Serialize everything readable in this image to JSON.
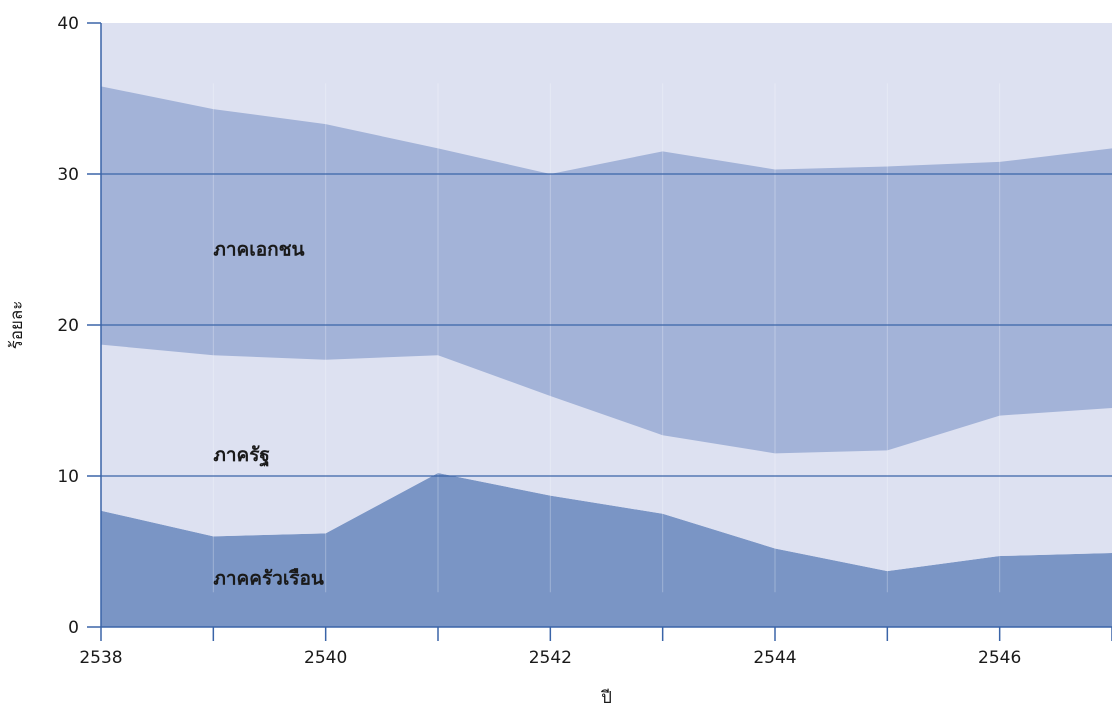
{
  "chart_data": {
    "type": "area",
    "stacked": true,
    "x": [
      2538,
      2539,
      2540,
      2541,
      2542,
      2543,
      2544,
      2545,
      2546,
      2547
    ],
    "xlim": [
      2538,
      2547
    ],
    "ylim": [
      0,
      40
    ],
    "x_ticks": [
      2538,
      2539,
      2540,
      2541,
      2542,
      2543,
      2544,
      2545,
      2546,
      2547
    ],
    "x_tick_labels": [
      "2538",
      "2540",
      "2542",
      "2544",
      "2546"
    ],
    "y_ticks": [
      0,
      10,
      20,
      30,
      40
    ],
    "xlabel": "ปี",
    "ylabel": "ร้อยละ",
    "grid": {
      "horizontal": true,
      "vertical": true
    },
    "legend": "inline labels inside bands",
    "background_color": "#dde1f1",
    "axis_color": "#3a64a8",
    "series": [
      {
        "name": "ภาคครัวเรือน",
        "color": "#7a95c5",
        "values": [
          7.7,
          6.0,
          6.2,
          10.2,
          8.7,
          7.5,
          5.2,
          3.7,
          4.7,
          4.9
        ]
      },
      {
        "name": "ภาครัฐ",
        "color": "#dde1f1",
        "values": [
          11.0,
          12.0,
          11.5,
          7.8,
          6.6,
          5.2,
          6.3,
          8.0,
          9.3,
          9.6
        ]
      },
      {
        "name": "ภาคเอกชน",
        "color": "#a3b3d8",
        "values": [
          17.1,
          16.3,
          15.6,
          13.7,
          14.7,
          18.8,
          18.8,
          18.8,
          16.8,
          17.2
        ]
      }
    ]
  }
}
